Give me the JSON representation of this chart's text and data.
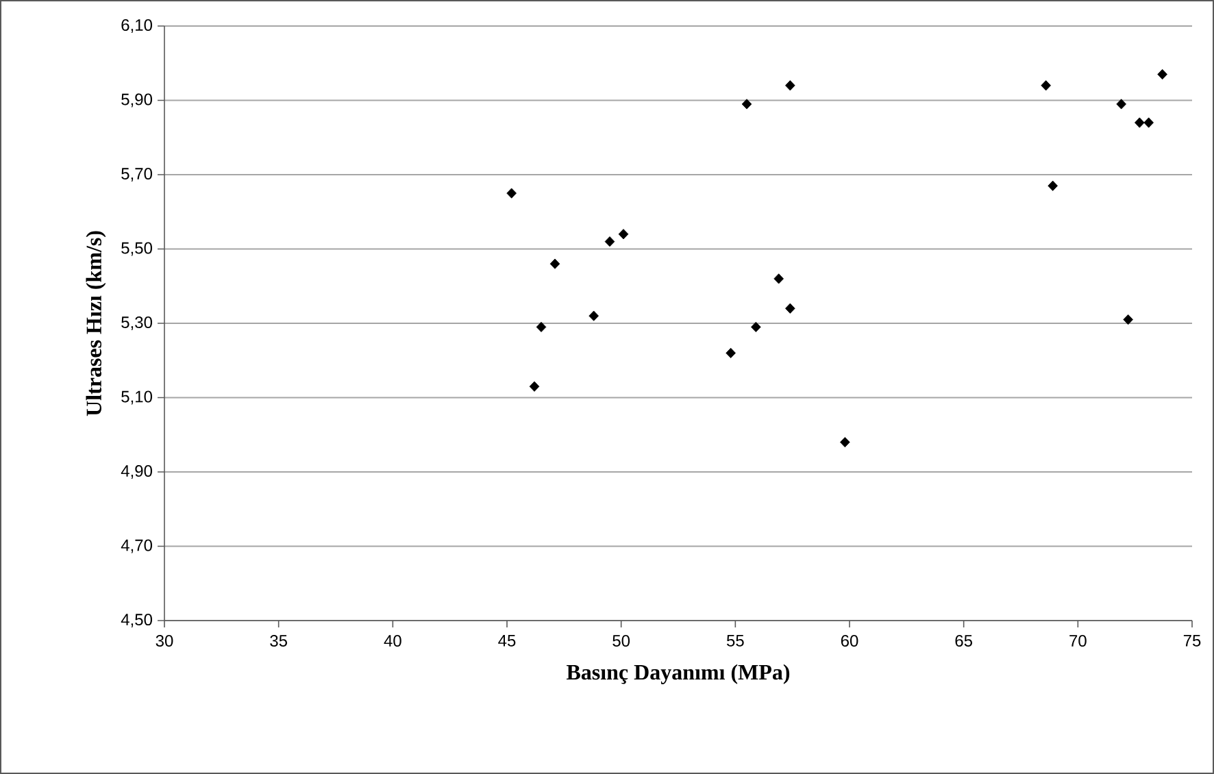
{
  "chart_data": {
    "type": "scatter",
    "xlabel": "Basınç Dayanımı (MPa)",
    "ylabel": "Ultrases Hızı (km/s)",
    "x": [
      45.2,
      49.5,
      50.1,
      47.1,
      48.8,
      46.5,
      46.2,
      54.8,
      55.9,
      56.9,
      57.4,
      59.8,
      55.5,
      57.4,
      68.6,
      71.9,
      72.7,
      73.1,
      73.7,
      68.9,
      72.2
    ],
    "values": [
      5.65,
      5.52,
      5.54,
      5.46,
      5.32,
      5.29,
      5.13,
      5.22,
      5.29,
      5.42,
      5.34,
      4.98,
      5.89,
      5.94,
      5.94,
      5.89,
      5.84,
      5.84,
      5.97,
      5.67,
      5.31
    ],
    "color": "#000000",
    "marker": "diamond",
    "grid": "y",
    "xlim": [
      30,
      75
    ],
    "xticks": [
      30,
      35,
      40,
      45,
      50,
      55,
      60,
      65,
      70,
      75
    ],
    "ylim": [
      4.5,
      6.1
    ],
    "yticks": [
      {
        "value": 4.5,
        "label": "4,50"
      },
      {
        "value": 4.7,
        "label": "4,70"
      },
      {
        "value": 4.9,
        "label": "4,90"
      },
      {
        "value": 5.1,
        "label": "5,10"
      },
      {
        "value": 5.3,
        "label": "5,30"
      },
      {
        "value": 5.5,
        "label": "5,50"
      },
      {
        "value": 5.7,
        "label": "5,70"
      },
      {
        "value": 5.9,
        "label": "5,90"
      },
      {
        "value": 6.1,
        "label": "6,10"
      }
    ]
  }
}
